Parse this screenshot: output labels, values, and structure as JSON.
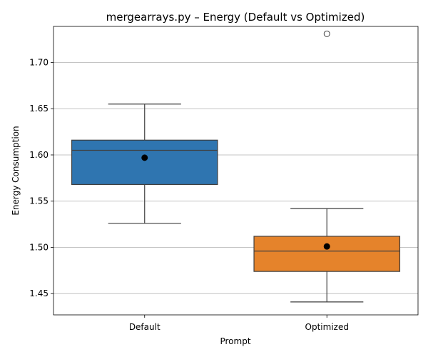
{
  "chart_data": {
    "type": "box",
    "title": "mergearrays.py – Energy (Default vs Optimized)",
    "xlabel": "Prompt",
    "ylabel": "Energy Consumption",
    "ylim": [
      1.427,
      1.739
    ],
    "yticks": [
      1.45,
      1.5,
      1.55,
      1.6,
      1.65,
      1.7
    ],
    "ytick_labels": [
      "1.45",
      "1.50",
      "1.55",
      "1.60",
      "1.65",
      "1.70"
    ],
    "grid": "y",
    "categories": [
      "Default",
      "Optimized"
    ],
    "boxes": [
      {
        "category": "Default",
        "color": "#2f75b0",
        "whisker_low": 1.526,
        "q1": 1.568,
        "median": 1.605,
        "q3": 1.616,
        "whisker_high": 1.655,
        "mean": 1.597,
        "outliers": []
      },
      {
        "category": "Optimized",
        "color": "#e5832b",
        "whisker_low": 1.441,
        "q1": 1.474,
        "median": 1.496,
        "q3": 1.512,
        "whisker_high": 1.542,
        "mean": 1.501,
        "outliers": [
          1.731
        ]
      }
    ]
  }
}
